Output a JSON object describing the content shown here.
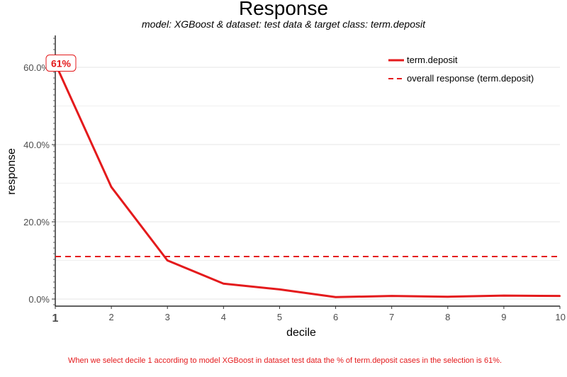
{
  "chart_data": {
    "type": "line",
    "title": "Response",
    "subtitle": "model: XGBoost  &  dataset: test data  &  target class: term.deposit",
    "xlabel": "decile",
    "ylabel": "response",
    "x": [
      1,
      2,
      3,
      4,
      5,
      6,
      7,
      8,
      9,
      10
    ],
    "xlim": [
      1,
      10
    ],
    "ylim": [
      0,
      0.65
    ],
    "y_ticks": [
      {
        "value": 0.0,
        "label": "0.0%"
      },
      {
        "value": 0.2,
        "label": "20.0%"
      },
      {
        "value": 0.4,
        "label": "40.0%"
      },
      {
        "value": 0.6,
        "label": "60.0%"
      }
    ],
    "x_ticks": [
      {
        "value": 1,
        "label": "1"
      },
      {
        "value": 2,
        "label": "2"
      },
      {
        "value": 3,
        "label": "3"
      },
      {
        "value": 4,
        "label": "4"
      },
      {
        "value": 5,
        "label": "5"
      },
      {
        "value": 6,
        "label": "6"
      },
      {
        "value": 7,
        "label": "7"
      },
      {
        "value": 8,
        "label": "8"
      },
      {
        "value": 9,
        "label": "9"
      },
      {
        "value": 10,
        "label": "10"
      }
    ],
    "series": [
      {
        "name": "term.deposit",
        "style": "solid",
        "color": "#e41a1c",
        "values": [
          0.61,
          0.29,
          0.1,
          0.04,
          0.025,
          0.005,
          0.008,
          0.006,
          0.009,
          0.008
        ]
      },
      {
        "name": "overall response (term.deposit)",
        "style": "dashed",
        "color": "#e41a1c",
        "values": [
          0.11,
          0.11,
          0.11,
          0.11,
          0.11,
          0.11,
          0.11,
          0.11,
          0.11,
          0.11
        ]
      }
    ],
    "annotation": {
      "x": 1,
      "y": 0.61,
      "label": "61%"
    },
    "grid": true,
    "legend_position": "top-right",
    "caption": "When we select decile 1 according to model XGBoost in dataset test data the % of term.deposit cases in the selection is 61%."
  }
}
